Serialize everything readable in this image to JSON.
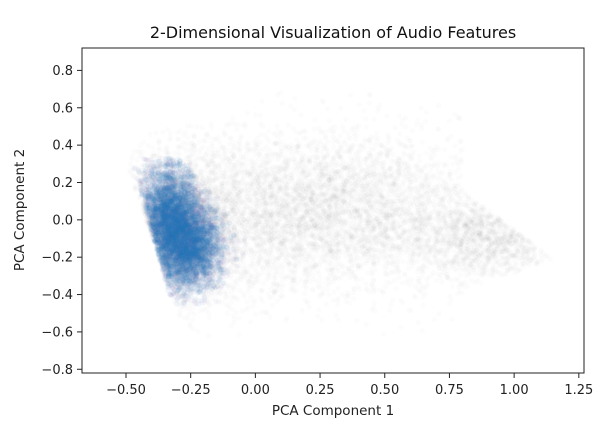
{
  "chart_data": {
    "type": "scatter",
    "title": "2-Dimensional Visualization of Audio Features",
    "xlabel": "PCA Component 1",
    "ylabel": "PCA Component 2",
    "xlim": [
      -0.67,
      1.27
    ],
    "ylim": [
      -0.82,
      0.92
    ],
    "xticks": [
      -0.5,
      -0.25,
      0.0,
      0.25,
      0.5,
      0.75,
      1.0,
      1.25
    ],
    "xtick_labels": [
      "−0.50",
      "−0.25",
      "0.00",
      "0.25",
      "0.50",
      "0.75",
      "1.00",
      "1.25"
    ],
    "yticks": [
      -0.8,
      -0.6,
      -0.4,
      -0.2,
      0.0,
      0.2,
      0.4,
      0.6,
      0.8
    ],
    "ytick_labels": [
      "−0.8",
      "−0.6",
      "−0.4",
      "−0.2",
      "0.0",
      "0.2",
      "0.4",
      "0.6",
      "0.8"
    ],
    "grid": false,
    "series": [
      {
        "color": "#555555",
        "opacity": 0.02,
        "description_region": "diffuse gray point cloud spanning x -0.55 to 1.15, y -0.6 to 0.85",
        "density_centers": [
          {
            "x": -0.3,
            "y": -0.05,
            "sx": 0.12,
            "sy": 0.2,
            "weight": 0.35
          },
          {
            "x": 0.1,
            "y": 0.05,
            "sx": 0.25,
            "sy": 0.22,
            "weight": 0.3
          },
          {
            "x": 0.5,
            "y": 0.05,
            "sx": 0.25,
            "sy": 0.2,
            "weight": 0.2
          },
          {
            "x": 0.9,
            "y": -0.1,
            "sx": 0.15,
            "sy": 0.12,
            "weight": 0.15
          }
        ]
      },
      {
        "color": "#1f77b4",
        "opacity": 0.06,
        "highlight_color": "#7b5fb5",
        "density_centers": [
          {
            "x": -0.33,
            "y": 0.0,
            "sx": 0.07,
            "sy": 0.16,
            "weight": 0.6
          },
          {
            "x": -0.25,
            "y": -0.15,
            "sx": 0.07,
            "sy": 0.12,
            "weight": 0.4
          }
        ]
      }
    ]
  }
}
